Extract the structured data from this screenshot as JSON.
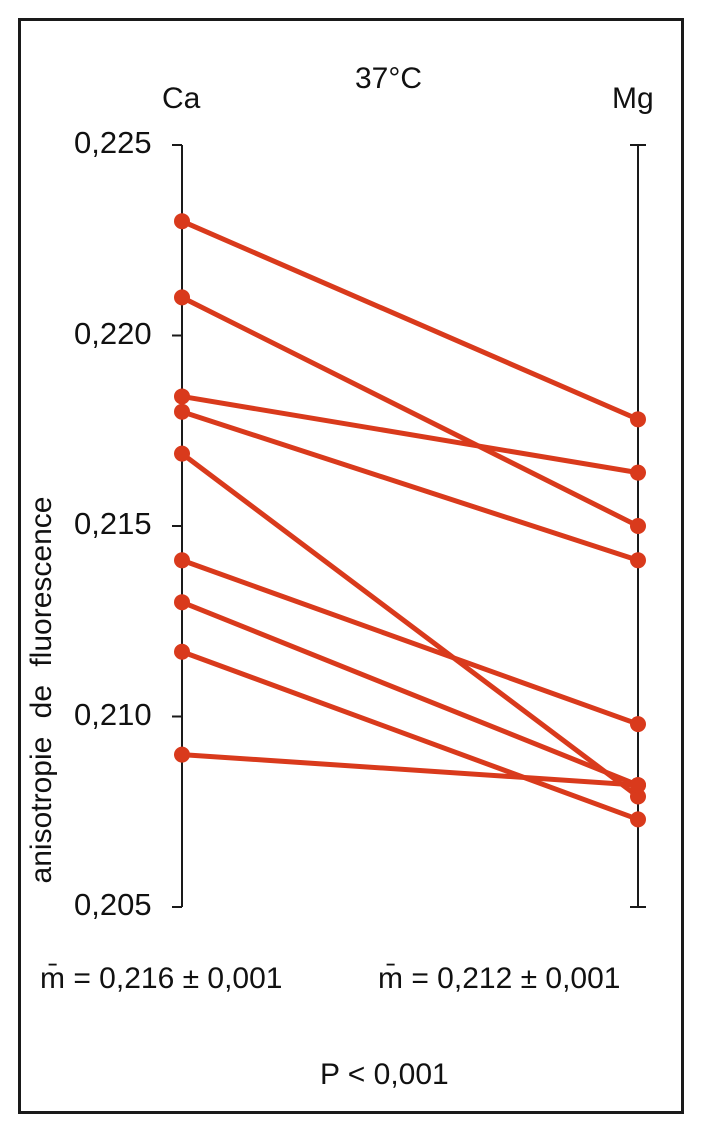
{
  "chart_data": {
    "type": "line",
    "title": "37°C",
    "ylabel": "anisotropie de fluorescence",
    "categories": [
      "Ca",
      "Mg"
    ],
    "ylim": [
      0.205,
      0.225
    ],
    "yticks": [
      0.205,
      0.21,
      0.215,
      0.22,
      0.225
    ],
    "ytick_labels": [
      "0,205",
      "0,210",
      "0,215",
      "0,220",
      "0,225"
    ],
    "series": [
      {
        "values": [
          0.223,
          0.2178
        ]
      },
      {
        "values": [
          0.221,
          0.215
        ]
      },
      {
        "values": [
          0.2184,
          0.2164
        ]
      },
      {
        "values": [
          0.218,
          0.2141
        ]
      },
      {
        "values": [
          0.2169,
          0.2079
        ]
      },
      {
        "values": [
          0.2141,
          0.2098
        ]
      },
      {
        "values": [
          0.213,
          0.2082
        ]
      },
      {
        "values": [
          0.2117,
          0.2073
        ]
      },
      {
        "values": [
          0.209,
          0.2082
        ]
      }
    ],
    "line_color": "#d93a1c",
    "annotations": {
      "mean_ca": "m̄ = 0,216 ± 0,001",
      "mean_mg": "m̄ = 0,212 ± 0,001",
      "p_value": "P  < 0,001"
    }
  }
}
